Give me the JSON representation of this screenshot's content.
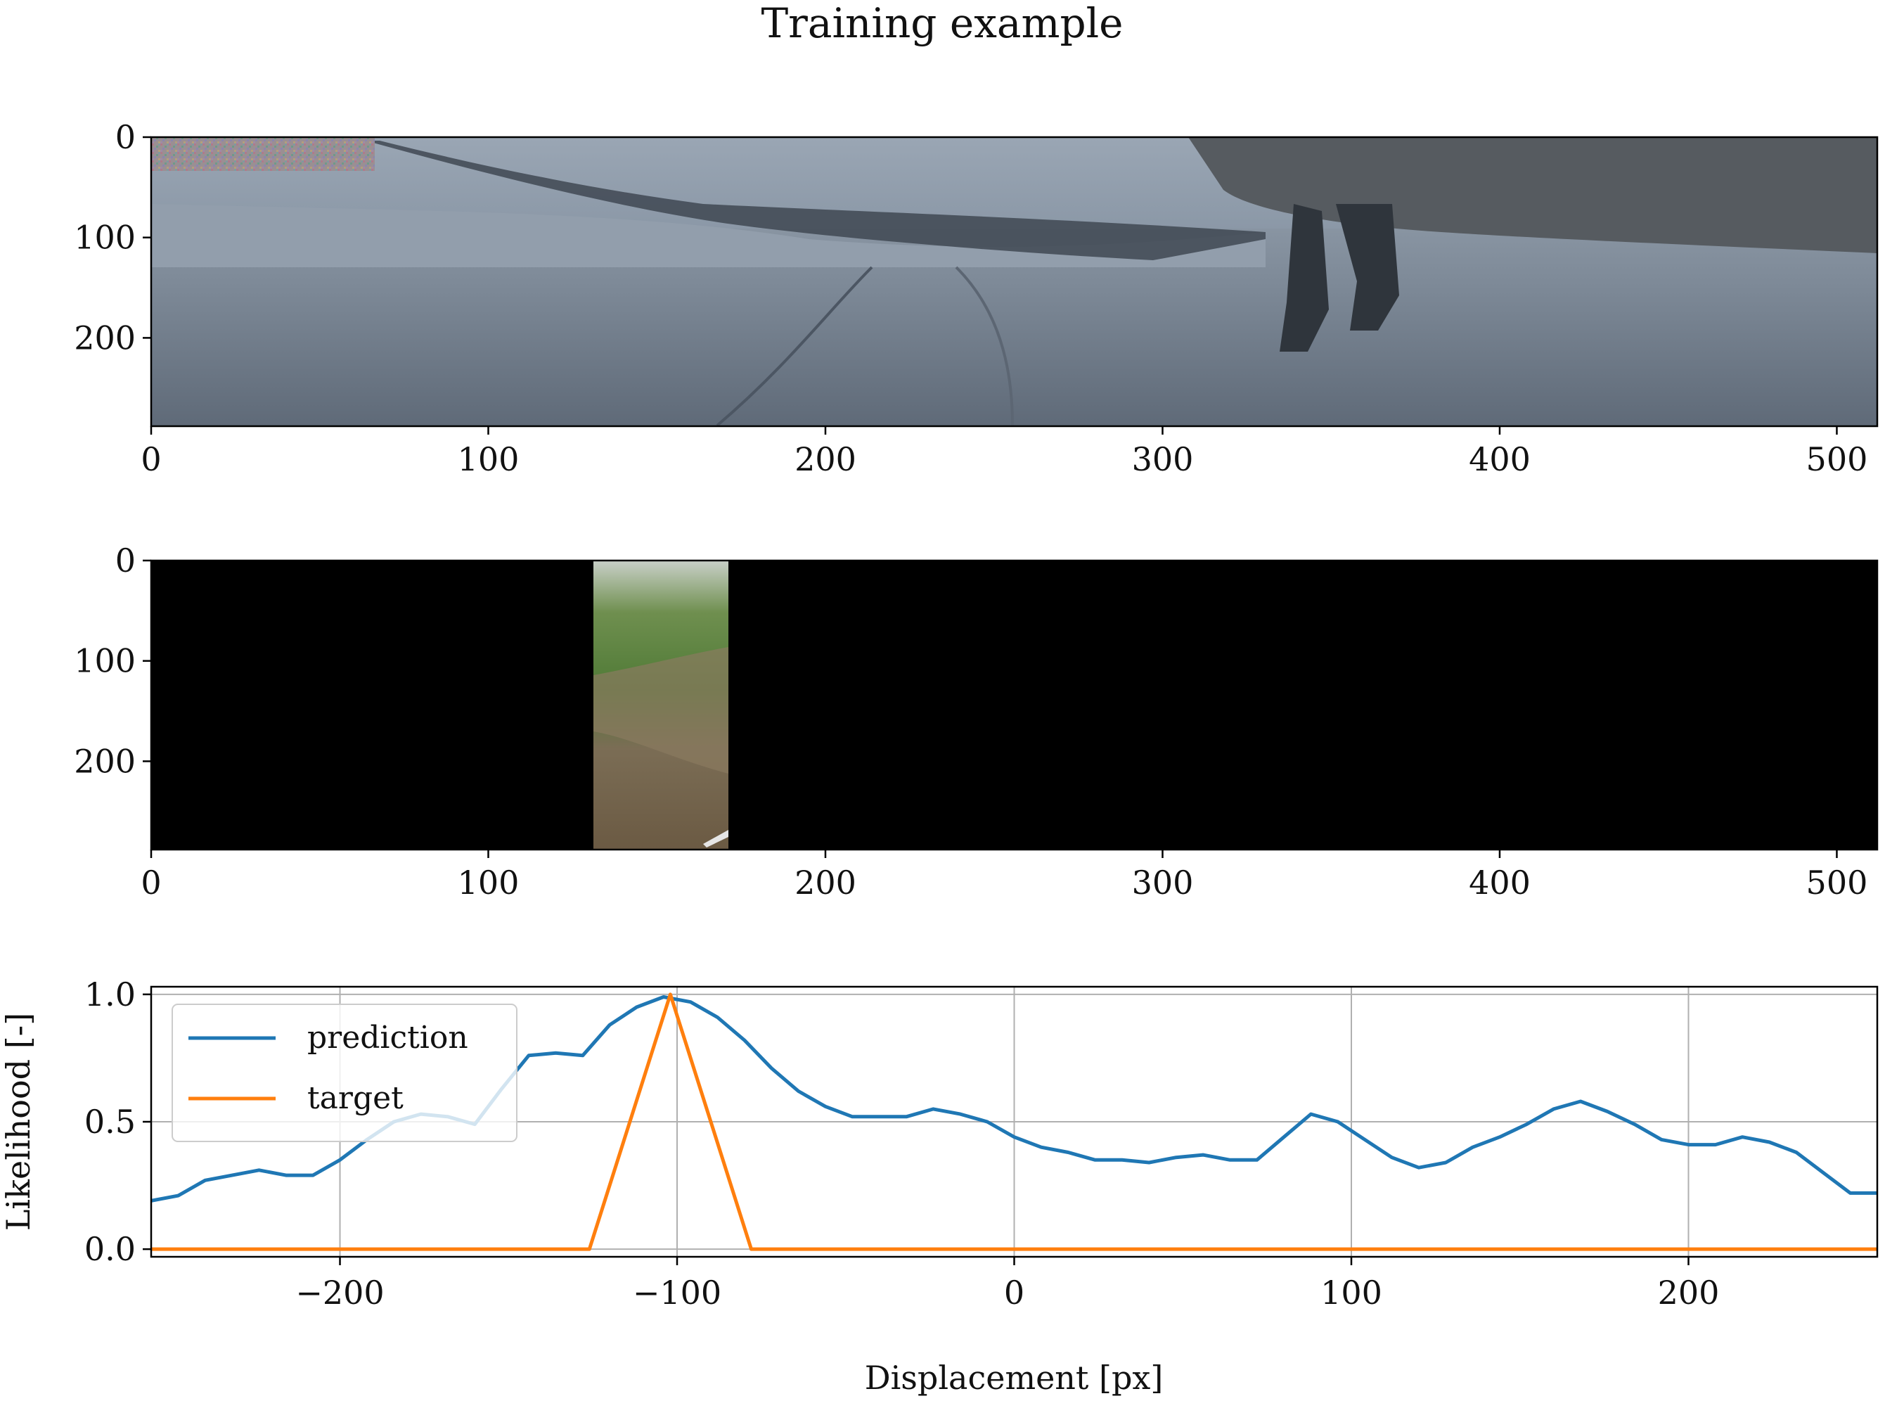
{
  "figure": {
    "title": "Training example"
  },
  "chart_data": [
    {
      "type": "image",
      "description_role": "top panel",
      "xlim": [
        0,
        512
      ],
      "ylim": [
        288,
        0
      ],
      "xticks": [
        "0",
        "100",
        "200",
        "300",
        "400",
        "500"
      ],
      "yticks": [
        "0",
        "100",
        "200"
      ],
      "content": "snowy road scene (camera image)",
      "noise_patch_x": [
        0,
        66
      ],
      "noise_patch_y": [
        0,
        32
      ]
    },
    {
      "type": "image",
      "description_role": "middle panel",
      "xlim": [
        0,
        512
      ],
      "ylim": [
        288,
        0
      ],
      "xticks": [
        "0",
        "100",
        "200",
        "300",
        "400",
        "500"
      ],
      "yticks": [
        "0",
        "100",
        "200"
      ],
      "content": "black image with a vertical strip of green hillside",
      "strip_x": [
        131,
        171
      ]
    },
    {
      "type": "line",
      "xlabel": "Displacement [px]",
      "ylabel": "Likelihood [-]",
      "xlim": [
        -256,
        256
      ],
      "ylim": [
        -0.03,
        1.03
      ],
      "grid": true,
      "xticks": [
        -200,
        -100,
        0,
        100,
        200
      ],
      "xtick_labels": [
        "−200",
        "−100",
        "0",
        "100",
        "200"
      ],
      "yticks": [
        0.0,
        0.5,
        1.0
      ],
      "ytick_labels": [
        "0.0",
        "0.5",
        "1.0"
      ],
      "legend_position": "top-left",
      "series": [
        {
          "name": "prediction",
          "color": "#1f77b4",
          "x": [
            -256,
            -248,
            -240,
            -232,
            -224,
            -216,
            -208,
            -200,
            -192,
            -184,
            -176,
            -168,
            -160,
            -152,
            -144,
            -136,
            -128,
            -120,
            -112,
            -104,
            -96,
            -88,
            -80,
            -72,
            -64,
            -56,
            -48,
            -40,
            -32,
            -24,
            -16,
            -8,
            0,
            8,
            16,
            24,
            32,
            40,
            48,
            56,
            64,
            72,
            80,
            88,
            96,
            104,
            112,
            120,
            128,
            136,
            144,
            152,
            160,
            168,
            176,
            184,
            192,
            200,
            208,
            216,
            224,
            232,
            240,
            248,
            256
          ],
          "y": [
            0.19,
            0.21,
            0.27,
            0.29,
            0.31,
            0.29,
            0.29,
            0.35,
            0.43,
            0.5,
            0.53,
            0.52,
            0.49,
            0.63,
            0.76,
            0.77,
            0.76,
            0.88,
            0.95,
            0.99,
            0.97,
            0.91,
            0.82,
            0.71,
            0.62,
            0.56,
            0.52,
            0.52,
            0.52,
            0.55,
            0.53,
            0.5,
            0.44,
            0.4,
            0.38,
            0.35,
            0.35,
            0.34,
            0.36,
            0.37,
            0.35,
            0.35,
            0.44,
            0.53,
            0.5,
            0.43,
            0.36,
            0.32,
            0.34,
            0.4,
            0.44,
            0.49,
            0.55,
            0.58,
            0.54,
            0.49,
            0.43,
            0.41,
            0.41,
            0.44,
            0.42,
            0.38,
            0.3,
            0.22,
            0.22
          ]
        },
        {
          "name": "target",
          "color": "#ff7f0e",
          "x": [
            -256,
            -126,
            -102,
            -78,
            256
          ],
          "y": [
            0,
            0,
            1,
            0,
            0
          ]
        }
      ]
    }
  ]
}
